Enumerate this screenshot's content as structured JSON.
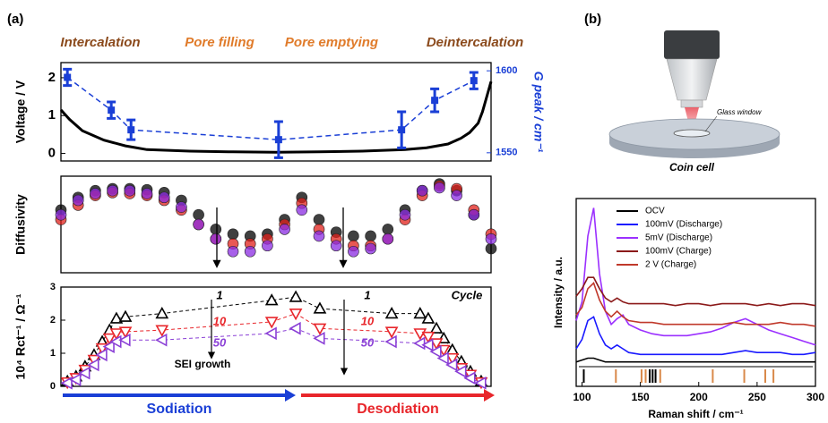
{
  "chart_data": [
    {
      "type": "line",
      "panel_label": "(a)",
      "phases": [
        {
          "text": "Intercalation",
          "color": "#8b4a1c"
        },
        {
          "text": "Pore filling",
          "color": "#e07b2a"
        },
        {
          "text": "Pore emptying",
          "color": "#e07b2a"
        },
        {
          "text": "Deintercalation",
          "color": "#8b4a1c"
        }
      ],
      "ylabel": "Voltage / V",
      "y2label": "G peak / cm⁻¹",
      "xlim": [
        0,
        100
      ],
      "ylim": [
        -0.2,
        2.4
      ],
      "yticks": [
        0,
        1,
        2
      ],
      "y2lim": [
        1545,
        1605
      ],
      "y2ticks": [
        1550,
        1600
      ],
      "series": [
        {
          "color": "#000000",
          "x": [
            0,
            2,
            5,
            10,
            15,
            20,
            30,
            40,
            50,
            60,
            70,
            80,
            85,
            90,
            93,
            95,
            97,
            98,
            99,
            100
          ],
          "values": [
            1.15,
            0.9,
            0.6,
            0.35,
            0.2,
            0.1,
            0.06,
            0.04,
            0.03,
            0.04,
            0.06,
            0.1,
            0.15,
            0.25,
            0.4,
            0.55,
            0.8,
            1.1,
            1.5,
            1.9
          ]
        },
        {
          "color": "#1a3fd6",
          "axis": "y2",
          "dashed": true,
          "x": [
            1.5,
            11.7,
            16.3,
            50.6,
            79.2,
            86.9,
            96
          ],
          "values": [
            1596,
            1576,
            1564,
            1558,
            1564,
            1582,
            1594
          ],
          "errors": [
            5,
            5,
            6,
            11,
            11,
            7,
            5
          ]
        }
      ]
    },
    {
      "type": "scatter",
      "ylabel": "Diffusivity",
      "xlim": [
        0,
        100
      ],
      "ylim": [
        0,
        1
      ],
      "x": [
        0,
        4,
        8,
        12,
        16,
        20,
        24,
        28,
        32,
        36,
        40,
        44,
        48,
        52,
        56,
        60,
        64,
        68,
        72,
        76,
        80,
        84,
        88,
        92,
        96,
        100
      ],
      "series": [
        {
          "color": "#000000",
          "values": [
            0.65,
            0.78,
            0.85,
            0.87,
            0.87,
            0.86,
            0.83,
            0.75,
            0.6,
            0.45,
            0.4,
            0.38,
            0.4,
            0.55,
            0.78,
            0.55,
            0.42,
            0.38,
            0.38,
            0.45,
            0.65,
            0.85,
            0.92,
            0.85,
            0.6,
            0.25
          ]
        },
        {
          "color": "#e0201b",
          "values": [
            0.55,
            0.7,
            0.8,
            0.83,
            0.82,
            0.8,
            0.75,
            0.65,
            0.5,
            0.35,
            0.3,
            0.3,
            0.35,
            0.5,
            0.72,
            0.45,
            0.35,
            0.28,
            0.28,
            0.35,
            0.55,
            0.8,
            0.9,
            0.87,
            0.65,
            0.4
          ]
        },
        {
          "color": "#8a2be2",
          "values": [
            0.6,
            0.75,
            0.82,
            0.85,
            0.85,
            0.82,
            0.78,
            0.68,
            0.5,
            0.35,
            0.22,
            0.22,
            0.28,
            0.45,
            0.65,
            0.38,
            0.28,
            0.22,
            0.25,
            0.35,
            0.6,
            0.85,
            0.88,
            0.8,
            0.6,
            0.35
          ]
        }
      ]
    },
    {
      "type": "scatter",
      "ylabel": "10⁴ Rct⁻¹ / Ω⁻¹",
      "xlim": [
        0,
        100
      ],
      "ylim": [
        0,
        3
      ],
      "yticks": [
        0,
        1,
        2,
        3
      ],
      "x": [
        1.5,
        3.5,
        5.6,
        7.7,
        9.6,
        11.3,
        12.9,
        15,
        23.5,
        49,
        54.6,
        60.2,
        76.9,
        83.5,
        85.4,
        87.3,
        89,
        91,
        93.1,
        95.2,
        97.7
      ],
      "series": [
        {
          "color": "#000000",
          "marker": "^",
          "values": [
            0.15,
            0.3,
            0.6,
            0.95,
            1.35,
            1.7,
            2.05,
            2.1,
            2.2,
            2.6,
            2.7,
            2.35,
            2.2,
            2.2,
            2.05,
            1.75,
            1.45,
            1.1,
            0.75,
            0.45,
            0.15
          ]
        },
        {
          "color": "#e8262b",
          "marker": "v",
          "values": [
            0.12,
            0.25,
            0.5,
            0.8,
            1.15,
            1.45,
            1.6,
            1.65,
            1.7,
            1.95,
            2.2,
            1.75,
            1.65,
            1.6,
            1.5,
            1.3,
            1.1,
            0.85,
            0.55,
            0.35,
            0.12
          ]
        },
        {
          "color": "#8a3fd6",
          "marker": "<",
          "values": [
            0.1,
            0.2,
            0.4,
            0.65,
            0.95,
            1.2,
            1.35,
            1.4,
            1.4,
            1.6,
            1.75,
            1.45,
            1.35,
            1.3,
            1.25,
            1.05,
            0.85,
            0.65,
            0.45,
            0.25,
            0.1
          ]
        }
      ],
      "annotations": [
        "1",
        "10",
        "50",
        "1",
        "10",
        "50",
        "Cycle",
        "SEI growth"
      ],
      "arrows": [
        {
          "text": "Sodiation",
          "color": "#1a3fd6"
        },
        {
          "text": "Desodiation",
          "color": "#e8262b"
        }
      ]
    },
    {
      "type": "line",
      "xlabel": "Raman shift / cm⁻¹",
      "ylabel": "Intensity / a.u.",
      "xlim": [
        95,
        300
      ],
      "ylim": [
        0,
        1
      ],
      "xticks": [
        100,
        150,
        200,
        250,
        300
      ],
      "legend": "top-right",
      "x": [
        95,
        100,
        105,
        110,
        115,
        120,
        125,
        130,
        135,
        140,
        150,
        160,
        170,
        180,
        190,
        200,
        210,
        220,
        230,
        240,
        250,
        260,
        270,
        280,
        290,
        300
      ],
      "series": [
        {
          "name": "OCV",
          "color": "#000000",
          "values": [
            0.13,
            0.14,
            0.15,
            0.15,
            0.14,
            0.13,
            0.13,
            0.13,
            0.13,
            0.13,
            0.13,
            0.13,
            0.13,
            0.13,
            0.13,
            0.13,
            0.13,
            0.13,
            0.13,
            0.13,
            0.13,
            0.13,
            0.13,
            0.13,
            0.13,
            0.13
          ]
        },
        {
          "name": "100mV (Discharge)",
          "color": "#1a1aff",
          "values": [
            0.2,
            0.25,
            0.35,
            0.37,
            0.28,
            0.22,
            0.2,
            0.22,
            0.2,
            0.18,
            0.17,
            0.17,
            0.17,
            0.17,
            0.17,
            0.17,
            0.17,
            0.17,
            0.18,
            0.19,
            0.18,
            0.18,
            0.18,
            0.17,
            0.17,
            0.18
          ]
        },
        {
          "name": "5mV (Discharge)",
          "color": "#9b30ff",
          "values": [
            0.35,
            0.45,
            0.8,
            0.95,
            0.6,
            0.4,
            0.33,
            0.36,
            0.38,
            0.33,
            0.3,
            0.28,
            0.27,
            0.27,
            0.27,
            0.28,
            0.29,
            0.31,
            0.34,
            0.36,
            0.33,
            0.3,
            0.28,
            0.26,
            0.24,
            0.22
          ]
        },
        {
          "name": "100mV (Charge)",
          "color": "#8b1a1a",
          "values": [
            0.48,
            0.52,
            0.58,
            0.58,
            0.52,
            0.47,
            0.45,
            0.47,
            0.45,
            0.44,
            0.44,
            0.44,
            0.44,
            0.43,
            0.44,
            0.44,
            0.43,
            0.44,
            0.44,
            0.44,
            0.43,
            0.44,
            0.43,
            0.44,
            0.44,
            0.43
          ]
        },
        {
          "name": "2 V (Charge)",
          "color": "#c0392b",
          "values": [
            0.38,
            0.42,
            0.52,
            0.55,
            0.46,
            0.4,
            0.37,
            0.4,
            0.37,
            0.35,
            0.34,
            0.34,
            0.33,
            0.33,
            0.33,
            0.33,
            0.33,
            0.33,
            0.34,
            0.33,
            0.33,
            0.33,
            0.34,
            0.33,
            0.33,
            0.32
          ]
        }
      ],
      "references": [
        {
          "color": "#000000",
          "positions": [
            101.5,
            158,
            160.5,
            163
          ]
        },
        {
          "color": "#d9894a",
          "positions": [
            129,
            151,
            154.5,
            167,
            212,
            239,
            257,
            264
          ]
        }
      ]
    }
  ],
  "diagram": {
    "panel_label": "(b)",
    "window_label": "Glass window",
    "cell_label": "Coin cell"
  }
}
